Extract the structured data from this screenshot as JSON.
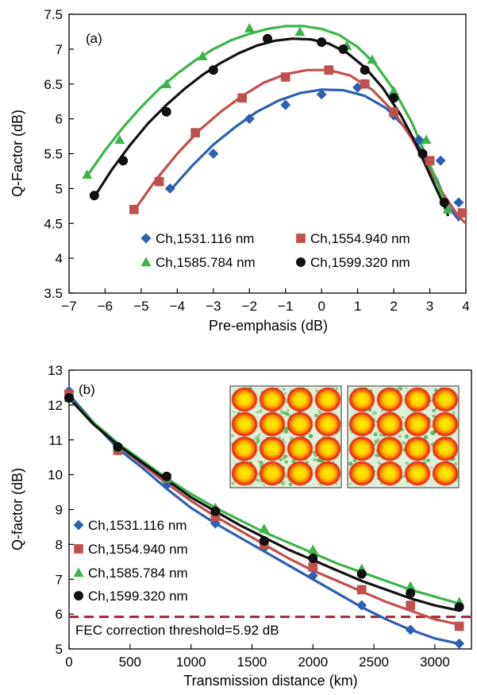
{
  "chart_data": [
    {
      "type": "line",
      "panel_label": "(a)",
      "xlabel": "Pre-emphasis (dB)",
      "ylabel": "Q-Factor (dB)",
      "xlim": [
        -7,
        4
      ],
      "ylim": [
        3.5,
        7.5
      ],
      "xticks": [
        -7,
        -6,
        -5,
        -4,
        -3,
        -2,
        -1,
        0,
        1,
        2,
        3,
        4
      ],
      "xtick_labels": [
        "−7",
        "−6",
        "−5",
        "−4",
        "−3",
        "−2",
        "−1",
        "0",
        "1",
        "2",
        "3",
        "4"
      ],
      "yticks": [
        3.5,
        4,
        4.5,
        5,
        5.5,
        6,
        6.5,
        7,
        7.5
      ],
      "ytick_labels": [
        "3.5",
        "4",
        "4.5",
        "5",
        "5.5",
        "6",
        "6.5",
        "7",
        "7.5"
      ],
      "grid": false,
      "legend_position": "bottom",
      "series": [
        {
          "name": "Ch,1531.116 nm",
          "color": "#2e5fb0",
          "marker": "diamond",
          "x": [
            -4.2,
            -3.0,
            -2.0,
            -1.0,
            0.0,
            1.0,
            2.0,
            2.7,
            3.3,
            3.8
          ],
          "y": [
            5.0,
            5.5,
            6.0,
            6.2,
            6.35,
            6.45,
            6.05,
            5.7,
            5.4,
            4.8
          ],
          "curve_x": [
            -4.2,
            -3.6,
            -3.0,
            -2.4,
            -1.8,
            -1.2,
            -0.6,
            0.0,
            0.6,
            1.2,
            1.8,
            2.4,
            2.8,
            3.2,
            3.5,
            3.8
          ],
          "curve_y": [
            4.97,
            5.32,
            5.63,
            5.88,
            6.1,
            6.26,
            6.37,
            6.42,
            6.41,
            6.33,
            6.15,
            5.83,
            5.52,
            5.12,
            4.75,
            4.55
          ]
        },
        {
          "name": "Ch,1554.940 nm",
          "color": "#c0504d",
          "marker": "square",
          "x": [
            -5.2,
            -4.5,
            -3.5,
            -2.2,
            -1.0,
            0.2,
            1.2,
            2.0,
            3.0,
            3.9
          ],
          "y": [
            4.7,
            5.1,
            5.8,
            6.3,
            6.6,
            6.7,
            6.5,
            6.1,
            5.4,
            4.65
          ],
          "curve_x": [
            -5.2,
            -4.6,
            -4.0,
            -3.4,
            -2.8,
            -2.2,
            -1.6,
            -1.0,
            -0.4,
            0.2,
            0.8,
            1.4,
            2.0,
            2.5,
            3.0,
            3.4,
            3.8,
            4.0
          ],
          "curve_y": [
            4.68,
            5.12,
            5.5,
            5.83,
            6.1,
            6.33,
            6.52,
            6.64,
            6.7,
            6.7,
            6.62,
            6.42,
            6.1,
            5.72,
            5.25,
            4.9,
            4.6,
            4.5
          ]
        },
        {
          "name": "Ch,1585.784 nm",
          "color": "#3cb44b",
          "marker": "triangle",
          "x": [
            -6.5,
            -5.6,
            -4.3,
            -3.3,
            -2.0,
            -0.6,
            0.7,
            1.4,
            2.0,
            2.9,
            3.5
          ],
          "y": [
            5.2,
            5.7,
            6.5,
            6.9,
            7.3,
            7.25,
            7.05,
            6.85,
            6.4,
            5.7,
            4.7
          ],
          "curve_x": [
            -6.5,
            -6.0,
            -5.5,
            -5.0,
            -4.5,
            -4.0,
            -3.5,
            -3.0,
            -2.5,
            -2.0,
            -1.5,
            -1.0,
            -0.5,
            0.0,
            0.5,
            1.0,
            1.5,
            2.0,
            2.5,
            3.0,
            3.3,
            3.55
          ],
          "curve_y": [
            5.18,
            5.55,
            5.88,
            6.17,
            6.43,
            6.65,
            6.84,
            7.0,
            7.13,
            7.22,
            7.29,
            7.33,
            7.33,
            7.29,
            7.2,
            7.03,
            6.78,
            6.42,
            5.95,
            5.35,
            4.95,
            4.7
          ]
        },
        {
          "name": "Ch,1599.320 nm",
          "color": "#111111",
          "marker": "circle",
          "x": [
            -6.3,
            -5.5,
            -4.3,
            -3.0,
            -1.5,
            0.0,
            0.6,
            1.2,
            2.0,
            2.8,
            3.4
          ],
          "y": [
            4.9,
            5.4,
            6.1,
            6.7,
            7.15,
            7.1,
            7.0,
            6.7,
            6.3,
            5.5,
            4.8
          ],
          "curve_x": [
            -6.3,
            -5.8,
            -5.3,
            -4.8,
            -4.3,
            -3.8,
            -3.3,
            -2.8,
            -2.3,
            -1.8,
            -1.3,
            -0.8,
            -0.3,
            0.2,
            0.7,
            1.2,
            1.7,
            2.2,
            2.6,
            3.0,
            3.4,
            3.5
          ],
          "curve_y": [
            4.88,
            5.28,
            5.63,
            5.94,
            6.2,
            6.43,
            6.63,
            6.8,
            6.94,
            7.05,
            7.12,
            7.15,
            7.14,
            7.08,
            6.95,
            6.74,
            6.44,
            6.05,
            5.66,
            5.2,
            4.75,
            4.62
          ]
        }
      ]
    },
    {
      "type": "line",
      "panel_label": "(b)",
      "xlabel": "Transmission distance (km)",
      "ylabel": "Q-factor (dB)",
      "xlim": [
        0,
        3300
      ],
      "ylim": [
        5,
        13
      ],
      "xticks": [
        0,
        500,
        1000,
        1500,
        2000,
        2500,
        3000
      ],
      "xtick_labels": [
        "0",
        "500",
        "1000",
        "1500",
        "2000",
        "2500",
        "3000"
      ],
      "yticks": [
        5,
        6,
        7,
        8,
        9,
        10,
        11,
        12,
        13
      ],
      "ytick_labels": [
        "5",
        "6",
        "7",
        "8",
        "9",
        "10",
        "11",
        "12",
        "13"
      ],
      "grid": false,
      "legend_position": "left",
      "threshold": {
        "value": 5.92,
        "label": "FEC correction threshold=5.92 dB",
        "color": "#a02830"
      },
      "inset": "two constellation diagrams, top-right",
      "series": [
        {
          "name": "Ch,1531.116 nm",
          "color": "#2e5fb0",
          "marker": "diamond",
          "x": [
            0,
            400,
            800,
            1200,
            1600,
            2000,
            2400,
            2800,
            3200
          ],
          "y": [
            12.4,
            10.7,
            9.7,
            8.6,
            7.9,
            7.1,
            6.25,
            5.55,
            5.15
          ],
          "curve_x": [
            0,
            200,
            400,
            600,
            800,
            1000,
            1200,
            1400,
            1600,
            1800,
            2000,
            2200,
            2400,
            2600,
            2800,
            3000,
            3200
          ],
          "curve_y": [
            12.3,
            11.5,
            10.75,
            10.2,
            9.6,
            9.05,
            8.6,
            8.2,
            7.8,
            7.4,
            7.0,
            6.6,
            6.2,
            5.85,
            5.55,
            5.3,
            5.15
          ]
        },
        {
          "name": "Ch,1554.940 nm",
          "color": "#c0504d",
          "marker": "square",
          "x": [
            0,
            400,
            800,
            1200,
            1600,
            2000,
            2400,
            2800,
            3200
          ],
          "y": [
            12.3,
            10.7,
            9.9,
            8.8,
            8.0,
            7.35,
            6.7,
            6.25,
            5.65
          ],
          "curve_x": [
            0,
            200,
            400,
            600,
            800,
            1000,
            1200,
            1400,
            1600,
            1800,
            2000,
            2200,
            2400,
            2600,
            2800,
            3000,
            3200
          ],
          "curve_y": [
            12.2,
            11.45,
            10.85,
            10.3,
            9.75,
            9.25,
            8.8,
            8.4,
            8.0,
            7.6,
            7.25,
            6.95,
            6.65,
            6.35,
            6.1,
            5.85,
            5.7
          ]
        },
        {
          "name": "Ch,1585.784 nm",
          "color": "#3cb44b",
          "marker": "triangle",
          "x": [
            0,
            400,
            800,
            1200,
            1600,
            2000,
            2400,
            2800,
            3200
          ],
          "y": [
            12.2,
            10.8,
            9.9,
            9.05,
            8.45,
            7.85,
            7.3,
            6.8,
            6.35
          ],
          "curve_x": [
            0,
            200,
            400,
            600,
            800,
            1000,
            1200,
            1400,
            1600,
            1800,
            2000,
            2200,
            2400,
            2600,
            2800,
            3000,
            3200
          ],
          "curve_y": [
            12.2,
            11.5,
            10.9,
            10.4,
            9.9,
            9.45,
            9.05,
            8.7,
            8.35,
            8.05,
            7.75,
            7.45,
            7.2,
            6.95,
            6.7,
            6.5,
            6.3
          ]
        },
        {
          "name": "Ch,1599.320 nm",
          "color": "#111111",
          "marker": "circle",
          "x": [
            0,
            400,
            800,
            1200,
            1600,
            2000,
            2400,
            2800,
            3200
          ],
          "y": [
            12.2,
            10.8,
            9.95,
            8.95,
            8.1,
            7.6,
            7.15,
            6.6,
            6.2
          ],
          "curve_x": [
            0,
            200,
            400,
            600,
            800,
            1000,
            1200,
            1400,
            1600,
            1800,
            2000,
            2200,
            2400,
            2600,
            2800,
            3000,
            3200
          ],
          "curve_y": [
            12.2,
            11.45,
            10.85,
            10.35,
            9.85,
            9.35,
            8.95,
            8.55,
            8.2,
            7.85,
            7.55,
            7.25,
            6.95,
            6.7,
            6.45,
            6.25,
            6.1
          ]
        }
      ]
    }
  ]
}
